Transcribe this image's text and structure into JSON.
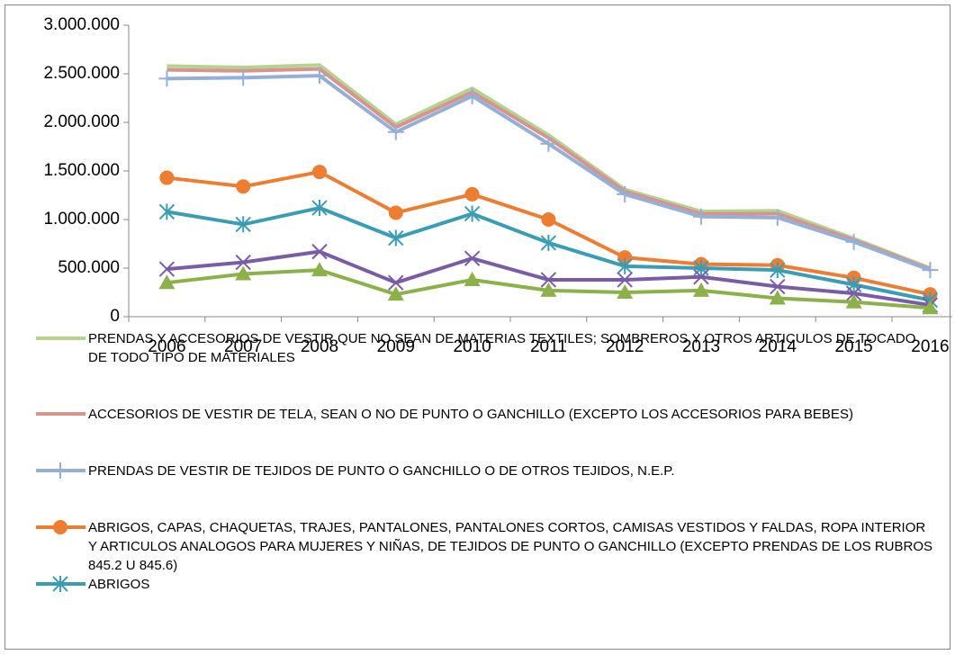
{
  "chart_data": {
    "type": "line",
    "categories": [
      "2006",
      "2007",
      "2008",
      "2009",
      "2010",
      "2011",
      "2012",
      "2013",
      "2014",
      "2015",
      "2016"
    ],
    "ylim": [
      0,
      3000000
    ],
    "yticks": [
      0,
      {
        "value": 500000,
        "label": "500.000"
      },
      {
        "value": 1000000,
        "label": "1.000.000"
      },
      {
        "value": 1500000,
        "label": "1.500.000"
      },
      {
        "value": 2000000,
        "label": "2.000.000"
      },
      {
        "value": 2500000,
        "label": "2.500.000"
      },
      {
        "value": 3000000,
        "label": "3.000.000"
      }
    ],
    "grid": false,
    "legend": "bottom",
    "series": [
      {
        "name": "PRENDAS Y ACCESORIOS DE VESTIR QUE NO SEAN DE MATERIAS TEXTILES; SOMBREROS Y OTROS ARTICULOS DE TOCADO DE TODO TIPO DE MATERIALES",
        "color": "#b5d38f",
        "marker": "none",
        "values": [
          2580000,
          2565000,
          2590000,
          1980000,
          2350000,
          1870000,
          1310000,
          1083000,
          1090000,
          805000,
          500000
        ]
      },
      {
        "name": "ACCESORIOS DE VESTIR DE TELA, SEAN O NO DE PUNTO O GANCHILLO (EXCEPTO LOS ACCESORIOS PARA BEBES)",
        "color": "#d9938f",
        "marker": "none",
        "values": [
          2540000,
          2530000,
          2550000,
          1950000,
          2310000,
          1840000,
          1290000,
          1060000,
          1060000,
          790000,
          490000
        ]
      },
      {
        "name": "PRENDAS DE VESTIR DE TEJIDOS DE PUNTO O GANCHILLO O DE OTROS TEJIDOS, N.E.P.",
        "color": "#94b0d8",
        "marker": "plus",
        "values": [
          2450000,
          2460000,
          2480000,
          1900000,
          2270000,
          1780000,
          1260000,
          1030000,
          1020000,
          770000,
          480000
        ]
      },
      {
        "name": "ABRIGOS, CAPAS, CHAQUETAS, TRAJES, PANTALONES, PANTALONES CORTOS, CAMISAS VESTIDOS Y FALDAS, ROPA INTERIOR Y ARTICULOS ANALOGOS PARA MUJERES Y NIÑAS, DE TEJIDOS DE PUNTO O GANCHILLO (EXCEPTO PRENDAS DE LOS RUBROS 845.2 U 845.6)",
        "color": "#ed7d31",
        "marker": "circle",
        "values": [
          1430000,
          1340000,
          1490000,
          1070000,
          1260000,
          1000000,
          610000,
          540000,
          530000,
          400000,
          230000
        ]
      },
      {
        "name": "ABRIGOS",
        "color": "#3b9db5",
        "marker": "asterisk",
        "values": [
          1080000,
          950000,
          1120000,
          810000,
          1060000,
          760000,
          520000,
          500000,
          480000,
          330000,
          170000
        ]
      },
      {
        "color": "#7a5ba6",
        "marker": "x",
        "values": [
          490000,
          560000,
          670000,
          350000,
          600000,
          380000,
          380000,
          410000,
          310000,
          240000,
          120000
        ]
      },
      {
        "color": "#8cb04a",
        "marker": "triangle",
        "values": [
          350000,
          440000,
          480000,
          230000,
          380000,
          270000,
          250000,
          270000,
          190000,
          150000,
          90000
        ]
      }
    ]
  }
}
